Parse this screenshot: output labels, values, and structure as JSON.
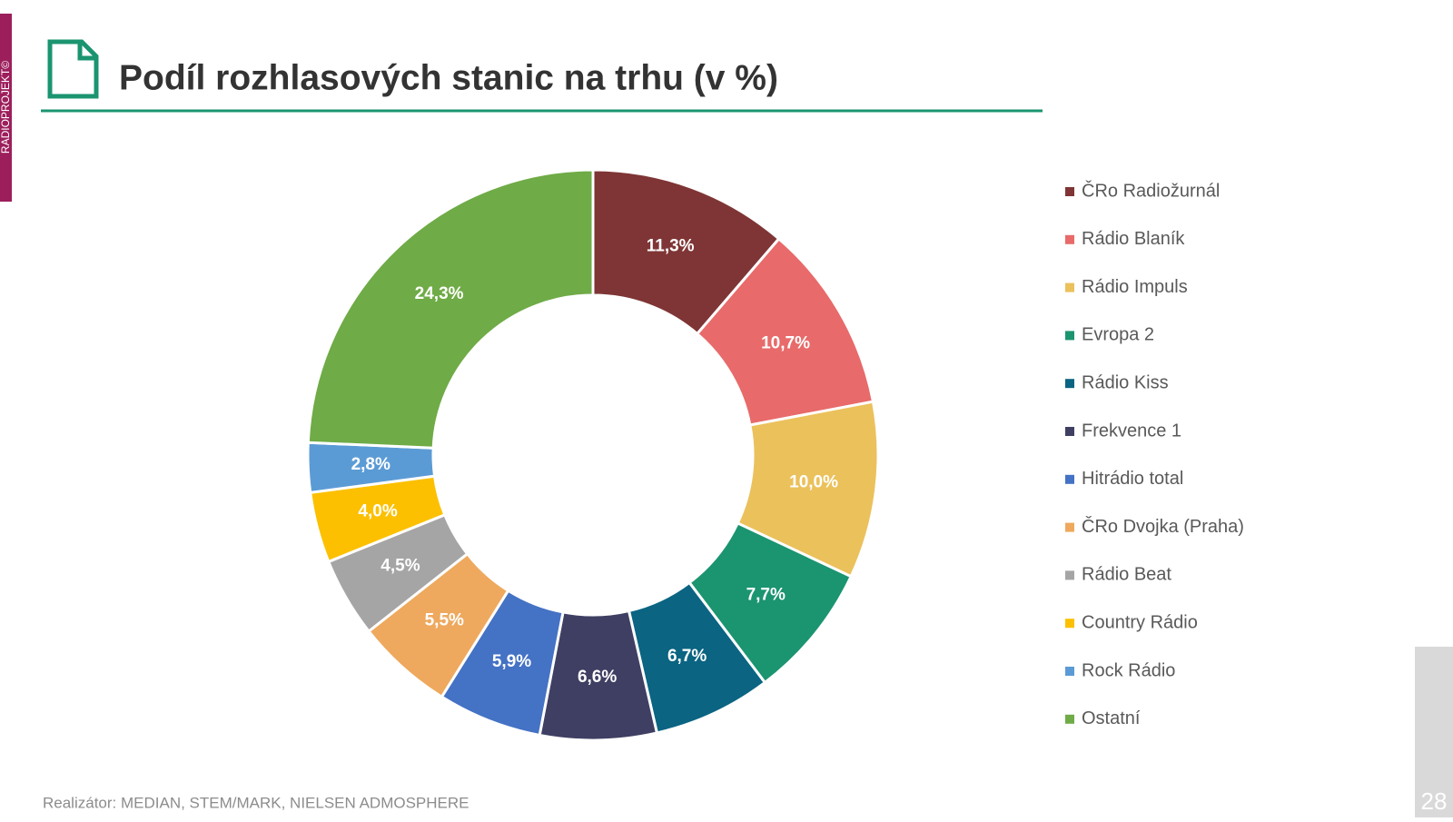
{
  "side_label": "RADIOPROJEKT©",
  "chart_data": {
    "type": "pie",
    "donut": true,
    "title": "Podíl rozhlasových stanic na trhu (v %)",
    "categories": [
      "ČRo Radiožurnál",
      "Rádio Blaník",
      "Rádio Impuls",
      "Evropa 2",
      "Rádio Kiss",
      "Frekvence 1",
      "Hitrádio total",
      "ČRo Dvojka (Praha)",
      "Rádio Beat",
      "Country Rádio",
      "Rock Rádio",
      "Ostatní"
    ],
    "values": [
      11.3,
      10.7,
      10.0,
      7.7,
      6.7,
      6.6,
      5.9,
      5.5,
      4.5,
      4.0,
      2.8,
      24.3
    ],
    "value_labels": [
      "11,3%",
      "10,7%",
      "10,0%",
      "7,7%",
      "6,7%",
      "6,6%",
      "5,9%",
      "5,5%",
      "4,5%",
      "4,0%",
      "2,8%",
      "24,3%"
    ],
    "colors": [
      "#7f3535",
      "#e86a6a",
      "#ebc15c",
      "#1b9470",
      "#0a6482",
      "#3f3f63",
      "#4472c4",
      "#eea95e",
      "#a5a5a5",
      "#fcc000",
      "#5b9bd5",
      "#6fab46"
    ],
    "legend": "right"
  },
  "source": "Realizátor: MEDIAN, STEM/MARK, NIELSEN ADMOSPHERE",
  "page_number": "28"
}
